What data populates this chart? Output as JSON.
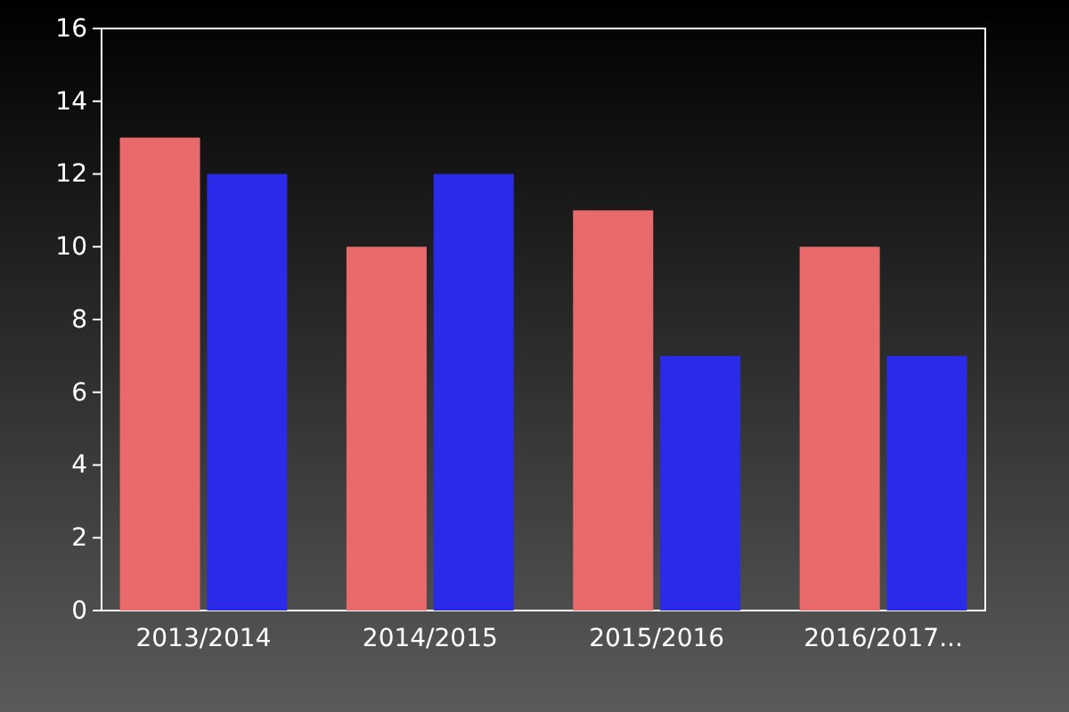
{
  "chart_data": {
    "type": "bar",
    "categories": [
      "2013/2014",
      "2014/2015",
      "2015/2016",
      "2016/2017..."
    ],
    "series": [
      {
        "color": "#e86a6a",
        "values": [
          13,
          10,
          11,
          10
        ]
      },
      {
        "color": "#2a2ae8",
        "values": [
          12,
          12,
          7,
          7
        ]
      }
    ],
    "ylim": [
      0,
      16
    ],
    "yticks": [
      0,
      2,
      4,
      6,
      8,
      10,
      12,
      14,
      16
    ]
  }
}
